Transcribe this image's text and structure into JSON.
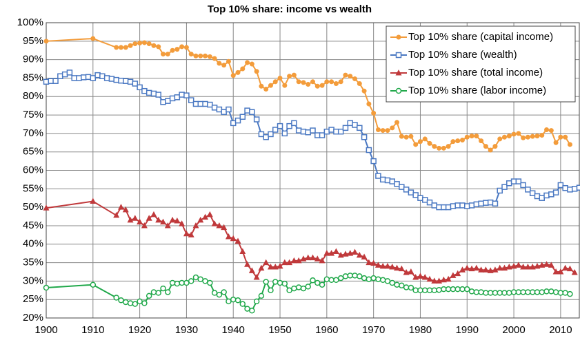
{
  "chart_data": {
    "type": "line",
    "title": "Top 10% share: income vs wealth",
    "x": [
      1900,
      1910,
      1915,
      1916,
      1917,
      1918,
      1919,
      1920,
      1921,
      1922,
      1923,
      1924,
      1925,
      1926,
      1927,
      1928,
      1929,
      1930,
      1931,
      1932,
      1933,
      1934,
      1935,
      1936,
      1937,
      1938,
      1939,
      1940,
      1941,
      1942,
      1943,
      1944,
      1945,
      1946,
      1947,
      1948,
      1949,
      1950,
      1951,
      1952,
      1953,
      1954,
      1955,
      1956,
      1957,
      1958,
      1959,
      1960,
      1961,
      1962,
      1963,
      1964,
      1965,
      1966,
      1967,
      1968,
      1969,
      1970,
      1971,
      1972,
      1973,
      1974,
      1975,
      1976,
      1977,
      1978,
      1979,
      1980,
      1981,
      1982,
      1983,
      1984,
      1985,
      1986,
      1987,
      1988,
      1989,
      1990,
      1991,
      1992,
      1993,
      1994,
      1995,
      1996,
      1997,
      1998,
      1999,
      2000,
      2001,
      2002,
      2003,
      2004,
      2005,
      2006,
      2007,
      2008,
      2009,
      2010,
      2011,
      2012,
      2013
    ],
    "series": [
      {
        "name": "Top 10% share (capital income)",
        "color": "#f39c3b",
        "marker": "circle",
        "values": [
          95,
          95.7,
          93.3,
          93.3,
          93.3,
          93.8,
          94.3,
          94.5,
          94.6,
          94.3,
          93.8,
          93.5,
          91.5,
          91.5,
          92.5,
          92.8,
          93.5,
          93.3,
          91.5,
          91,
          91,
          91,
          90.8,
          90.3,
          89,
          88.5,
          89.5,
          85.7,
          86.5,
          87.5,
          89.2,
          88.8,
          86.8,
          82.8,
          82,
          83,
          84,
          85,
          83,
          85.5,
          85.8,
          84,
          83.8,
          83.3,
          84,
          82.8,
          83,
          84,
          84,
          83.5,
          84,
          85.8,
          85.5,
          84.8,
          83.5,
          81.5,
          78,
          75.5,
          71,
          70.8,
          70.8,
          71.5,
          73,
          69.2,
          69,
          69.2,
          67,
          67.8,
          68.5,
          67.3,
          66.5,
          66,
          66,
          66.5,
          67.8,
          68,
          68.2,
          69,
          69.3,
          69.3,
          68,
          66.5,
          65.5,
          66.5,
          68.5,
          69,
          69.3,
          69.8,
          70,
          68.8,
          69,
          69.2,
          69.3,
          69.5,
          71,
          70.8,
          67.5,
          69,
          69,
          67,
          null
        ]
      },
      {
        "name": "Top 10% share (wealth)",
        "color": "#4a78c2",
        "marker": "square",
        "x": [
          1900,
          1901,
          1902,
          1903,
          1904,
          1905,
          1906,
          1907,
          1908,
          1909,
          1910,
          1911,
          1912,
          1913,
          1914,
          1915,
          1916,
          1917,
          1918,
          1919,
          1920,
          1921,
          1922,
          1923,
          1924,
          1925,
          1926,
          1927,
          1928,
          1929,
          1930,
          1931,
          1932,
          1933,
          1934,
          1935,
          1936,
          1937,
          1938,
          1939,
          1940,
          1941,
          1942,
          1943,
          1944,
          1945,
          1946,
          1947,
          1948,
          1949,
          1950,
          1951,
          1952,
          1953,
          1954,
          1955,
          1956,
          1957,
          1958,
          1959,
          1960,
          1961,
          1962,
          1963,
          1964,
          1965,
          1966,
          1967,
          1968,
          1969,
          1970,
          1971,
          1972,
          1973,
          1974,
          1975,
          1976,
          1977,
          1978,
          1979,
          1980,
          1981,
          1982,
          1983,
          1984,
          1985,
          1986,
          1987,
          1988,
          1989,
          1990,
          1991,
          1992,
          1993,
          1994,
          1995,
          1996,
          1997,
          1998,
          1999,
          2000,
          2001,
          2002,
          2003,
          2004,
          2005,
          2006,
          2007,
          2008,
          2009,
          2010,
          2011,
          2012,
          2013,
          2014
        ],
        "values": [
          84,
          84.2,
          84.2,
          85.5,
          86,
          86.5,
          85,
          85,
          85.2,
          85.3,
          85,
          85.8,
          85.5,
          85,
          84.8,
          84.5,
          84.3,
          84.2,
          84,
          83.5,
          82.5,
          81.5,
          81,
          80.8,
          80.5,
          78.5,
          78.8,
          79.5,
          79.8,
          80.5,
          80.3,
          79,
          78,
          78,
          78,
          77.8,
          77,
          76.5,
          75.8,
          76.5,
          72.8,
          73.5,
          74.5,
          76.2,
          75.8,
          73.8,
          69.8,
          69,
          69.8,
          71,
          72,
          70,
          72,
          72.8,
          70.8,
          70.5,
          70.3,
          70.8,
          69.5,
          69.5,
          70.5,
          71,
          70.5,
          70.5,
          71.5,
          72.8,
          72.3,
          71.5,
          69,
          65.5,
          62.5,
          58.5,
          57.5,
          57.3,
          57,
          56.3,
          55.5,
          54.8,
          54,
          53.3,
          52.5,
          52,
          51.3,
          50.5,
          50,
          50,
          50,
          50.3,
          50.5,
          50.5,
          50.3,
          50.5,
          50.8,
          51,
          51.2,
          51.3,
          51,
          54.5,
          55.5,
          56.5,
          57,
          57,
          56,
          54.8,
          53.8,
          53,
          52.5,
          53.2,
          53.5,
          54,
          56,
          55.2,
          54.8,
          55,
          55.3
        ]
      },
      {
        "name": "Top 10% share (total income)",
        "color": "#c0393b",
        "marker": "triangle",
        "values": [
          49.8,
          51.6,
          47.8,
          50,
          49.3,
          46.5,
          47,
          46,
          45,
          47,
          48,
          46.5,
          46,
          45,
          46.5,
          46.3,
          45.5,
          42.8,
          42.5,
          45,
          46.5,
          47.3,
          48,
          45.5,
          45,
          44.5,
          42,
          41.5,
          40.8,
          38,
          34.5,
          32.8,
          31,
          33.5,
          35,
          33.8,
          33.8,
          34,
          35,
          35,
          35.5,
          35.5,
          36,
          36.3,
          36.3,
          36,
          35.5,
          37.5,
          37.5,
          38,
          37,
          37.3,
          37.5,
          37.8,
          37,
          36.5,
          35,
          34.8,
          34.3,
          34,
          34,
          33.8,
          33.5,
          33.3,
          32.3,
          32.5,
          31,
          31.3,
          31,
          30.5,
          30,
          30,
          30.3,
          30.5,
          31.5,
          32,
          33,
          33.5,
          33.3,
          33.5,
          33,
          33,
          32.8,
          33,
          33.5,
          33.5,
          33.8,
          34,
          34.3,
          33.8,
          33.8,
          33.8,
          34,
          34.3,
          34.5,
          34.3,
          32.5,
          32.5,
          33.5,
          33.3,
          32.3
        ]
      },
      {
        "name": "Top 10% share (labor income)",
        "color": "#20a84a",
        "marker": "open-circle",
        "values": [
          28.2,
          29,
          25.5,
          24.8,
          24.3,
          24,
          23.8,
          24.5,
          24,
          26,
          27,
          26.8,
          28,
          27,
          29.5,
          29.3,
          29.5,
          29.5,
          30,
          31,
          30.5,
          30,
          29.5,
          26.8,
          26.3,
          27,
          24.5,
          25,
          24.8,
          23.8,
          22.5,
          22,
          24.5,
          26,
          29.8,
          27.5,
          29.8,
          29.5,
          29.3,
          27.5,
          28,
          28.3,
          28,
          28.5,
          30.2,
          29.5,
          29,
          30.5,
          30.3,
          30.3,
          30.8,
          31.3,
          31.5,
          31.5,
          31.3,
          30.8,
          30.5,
          30.8,
          30.5,
          30.3,
          30,
          29.5,
          29,
          28.8,
          28.3,
          28.2,
          27.5,
          27.5,
          27.5,
          27.5,
          27.5,
          27.6,
          27.8,
          27.8,
          27.8,
          27.8,
          27.8,
          27.8,
          27.2,
          27,
          27,
          26.8,
          26.8,
          26.8,
          26.8,
          26.8,
          26.8,
          27,
          27,
          27,
          27,
          27,
          27,
          27,
          27.2,
          27.2,
          27,
          26.8,
          26.8,
          26.5,
          null
        ]
      }
    ],
    "xlim": [
      1900,
      2014
    ],
    "xticks": [
      1900,
      1910,
      1920,
      1930,
      1940,
      1950,
      1960,
      1970,
      1980,
      1990,
      2000,
      2010
    ],
    "ylim": [
      20,
      100
    ],
    "yticks": [
      {
        "value": 20,
        "label": "20%"
      },
      {
        "value": 25,
        "label": "25%"
      },
      {
        "value": 30,
        "label": "30%"
      },
      {
        "value": 35,
        "label": "35%"
      },
      {
        "value": 40,
        "label": "40%"
      },
      {
        "value": 45,
        "label": "45%"
      },
      {
        "value": 50,
        "label": "50%"
      },
      {
        "value": 55,
        "label": "55%"
      },
      {
        "value": 60,
        "label": "60%"
      },
      {
        "value": 65,
        "label": "65%"
      },
      {
        "value": 70,
        "label": "70%"
      },
      {
        "value": 75,
        "label": "75%"
      },
      {
        "value": 80,
        "label": "80%"
      },
      {
        "value": 85,
        "label": "85%"
      },
      {
        "value": 90,
        "label": "90%"
      },
      {
        "value": 95,
        "label": "95%"
      },
      {
        "value": 100,
        "label": "100%"
      }
    ],
    "grid": true,
    "legend": "upper right"
  }
}
